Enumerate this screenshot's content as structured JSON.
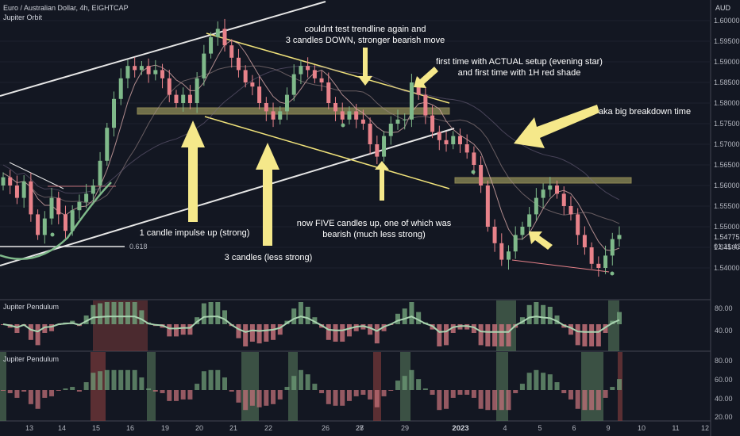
{
  "header": {
    "symbol_line": "Euro / Australian Dollar, 4h, EIGHTCAP",
    "indicator": "Jupiter Orbit"
  },
  "currency": "AUD",
  "price_axis": {
    "ticks": [
      "1.60000",
      "1.59500",
      "1.59000",
      "1.58500",
      "1.58000",
      "1.57500",
      "1.57000",
      "1.56500",
      "1.56000",
      "1.55500",
      "1.55000",
      "1.54500",
      "1.54000"
    ],
    "last_price": "1.54775",
    "countdown": "01:11:43"
  },
  "fib_label": "0.618",
  "annotations": [
    "couldnt test trendline again and",
    "3 candles DOWN, stronger bearish move",
    "first time with ACTUAL setup (evening star)",
    "and first time with 1H red shade",
    "aka big breakdown time",
    "1 candle impulse up (strong)",
    "3 candles (less strong)",
    "now FIVE candles up, one of which was",
    "bearish (much less strong)"
  ],
  "pane1": {
    "title": "Jupiter Pendulum",
    "ticks": [
      "80.00",
      "40.00"
    ]
  },
  "pane2": {
    "title": "Jupiter Pendulum",
    "ticks": [
      "80.00",
      "60.00",
      "40.00",
      "20.00"
    ]
  },
  "time_axis": [
    "13",
    "14",
    "15",
    "16",
    "19",
    "20",
    "21",
    "22",
    "26",
    "27",
    "28",
    "29",
    "2023",
    "4",
    "5",
    "6",
    "9",
    "10",
    "11",
    "12"
  ],
  "colors": {
    "bull": "#7fb98a",
    "bear": "#e8828a",
    "yellow": "#f5e88a",
    "bg": "#131722"
  },
  "chart_data": {
    "type": "candlestick",
    "ylim": [
      1.537,
      1.603
    ],
    "candles_close_estimate": [
      1.562,
      1.56,
      1.557,
      1.561,
      1.553,
      1.548,
      1.552,
      1.557,
      1.553,
      1.549,
      1.554,
      1.556,
      1.558,
      1.56,
      1.566,
      1.574,
      1.581,
      1.586,
      1.589,
      1.588,
      1.589,
      1.587,
      1.588,
      1.586,
      1.582,
      1.58,
      1.582,
      1.58,
      1.586,
      1.592,
      1.596,
      1.598,
      1.594,
      1.591,
      1.588,
      1.585,
      1.584,
      1.58,
      1.578,
      1.576,
      1.578,
      1.582,
      1.587,
      1.589,
      1.588,
      1.586,
      1.585,
      1.58,
      1.578,
      1.576,
      1.578,
      1.576,
      1.575,
      1.57,
      1.567,
      1.572,
      1.575,
      1.576,
      1.576,
      1.585,
      1.582,
      1.577,
      1.573,
      1.571,
      1.57,
      1.572,
      1.57,
      1.568,
      1.565,
      1.56,
      1.55,
      1.546,
      1.542,
      1.544,
      1.548,
      1.55,
      1.553,
      1.557,
      1.559,
      1.56,
      1.558,
      1.555,
      1.553,
      1.548,
      1.545,
      1.541,
      1.54,
      1.543,
      1.547,
      1.548
    ]
  }
}
